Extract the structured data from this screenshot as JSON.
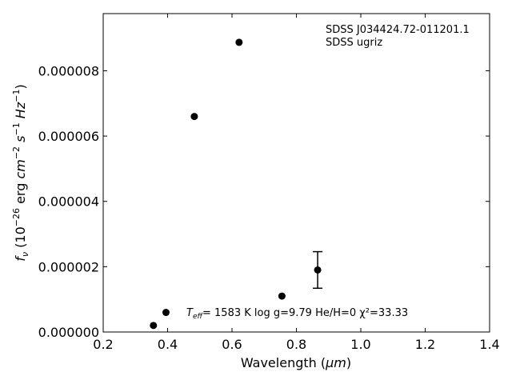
{
  "chart_data": {
    "type": "scatter",
    "xlabel_prefix": "Wavelength (",
    "xlabel_unit": "μm",
    "xlabel_suffix": ")",
    "ylabel": "f_ν (10^-26 erg cm^-2 s^-1 Hz^-1)",
    "xlim": [
      0.2,
      1.4
    ],
    "ylim": [
      0.0,
      9.75e-06
    ],
    "x_ticks": [
      0.2,
      0.4,
      0.6,
      0.8,
      1.0,
      1.2,
      1.4
    ],
    "x_tick_labels": [
      "0.2",
      "0.4",
      "0.6",
      "0.8",
      "1.0",
      "1.2",
      "1.4"
    ],
    "y_ticks": [
      0.0,
      2e-06,
      4e-06,
      6e-06,
      8e-06
    ],
    "y_tick_labels": [
      "0.000000",
      "0.000002",
      "0.000004",
      "0.000006",
      "0.000008"
    ],
    "grid": false,
    "marker_color": "#000000",
    "points": [
      {
        "x": 0.356,
        "y": 2e-07
      },
      {
        "x": 0.395,
        "y": 6e-07
      },
      {
        "x": 0.483,
        "y": 6.6e-06
      },
      {
        "x": 0.622,
        "y": 8.87e-06
      },
      {
        "x": 0.755,
        "y": 1.1e-06
      },
      {
        "x": 0.866,
        "y": 1.9e-06,
        "yerr": 5.6e-07
      }
    ],
    "annotations": {
      "object_name": "SDSS J034424.72-011201.1",
      "survey": "SDSS ugriz",
      "teff_label": "=  1583 K  log g=9.79  He/H=0  χ²=33.33"
    }
  }
}
